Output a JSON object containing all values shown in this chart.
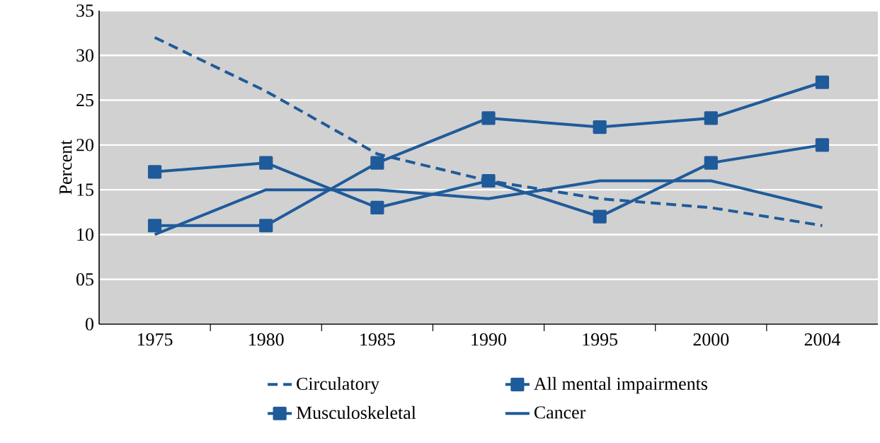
{
  "chart_data": {
    "type": "line",
    "ylabel": "Percent",
    "categories": [
      "1975",
      "1980",
      "1985",
      "1990",
      "1995",
      "2000",
      "2004"
    ],
    "series": [
      {
        "name": "Circulatory",
        "color": "#1f5b9a",
        "line_style": "dashed",
        "marker": "none",
        "values": [
          32,
          26,
          19,
          16,
          14,
          13,
          11
        ]
      },
      {
        "name": "All mental impairments",
        "color": "#1f5b9a",
        "line_style": "solid",
        "marker": "square",
        "values": [
          11,
          11,
          18,
          23,
          22,
          23,
          27
        ]
      },
      {
        "name": "Musculoskeletal",
        "color": "#1f5b9a",
        "line_style": "solid",
        "marker": "square",
        "values": [
          17,
          18,
          13,
          16,
          12,
          18,
          20
        ]
      },
      {
        "name": "Cancer",
        "color": "#1f5b9a",
        "line_style": "solid",
        "marker": "none",
        "values": [
          10,
          15,
          15,
          14,
          16,
          16,
          13
        ]
      }
    ],
    "ylim": [
      0,
      35
    ],
    "yticks": [
      0,
      {
        "value": 5,
        "label": "05"
      },
      10,
      15,
      20,
      25,
      30,
      35
    ],
    "grid": "y",
    "legend": "bottom"
  }
}
